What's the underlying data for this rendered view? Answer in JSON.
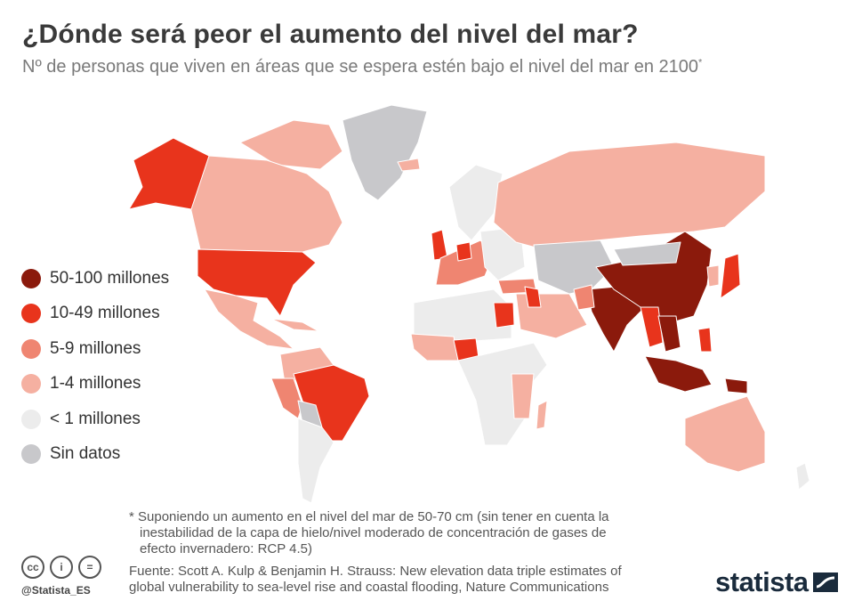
{
  "title": "¿Dónde será peor el aumento del nivel del mar?",
  "subtitle": "Nº de personas que viven en áreas que se espera estén bajo el nivel del mar en 2100",
  "subtitle_mark": "*",
  "legend": [
    {
      "label": "50-100 millones",
      "color": "#8b1a0c"
    },
    {
      "label": "10-49 millones",
      "color": "#e8341c"
    },
    {
      "label": "5-9 millones",
      "color": "#ef8571"
    },
    {
      "label": "1-4 millones",
      "color": "#f5b0a1"
    },
    {
      "label": "< 1 millones",
      "color": "#ececec"
    },
    {
      "label": "Sin datos",
      "color": "#c8c8cb"
    }
  ],
  "footnote": {
    "line1": "* Suponiendo un aumento en el nivel del mar de 50-70 cm (sin tener en cuenta la",
    "line2": "inestabilidad de la capa de hielo/nivel moderado de concentración de gases de",
    "line3": "efecto invernadero: RCP 4.5)"
  },
  "source": {
    "line1": "Fuente: Scott A. Kulp & Benjamin H. Strauss: New elevation data triple estimates of",
    "line2": "global vulnerability to sea-level rise and coastal flooding, Nature Communications"
  },
  "license_icons": {
    "cc": "cc",
    "by": "i",
    "nd": "="
  },
  "handle": "@Statista_ES",
  "brand": "statista",
  "colors": {
    "c50": "#8b1a0c",
    "c10": "#e8341c",
    "c5": "#ef8571",
    "c1": "#f5b0a1",
    "c0": "#ececec",
    "nodata": "#c8c8cb"
  }
}
